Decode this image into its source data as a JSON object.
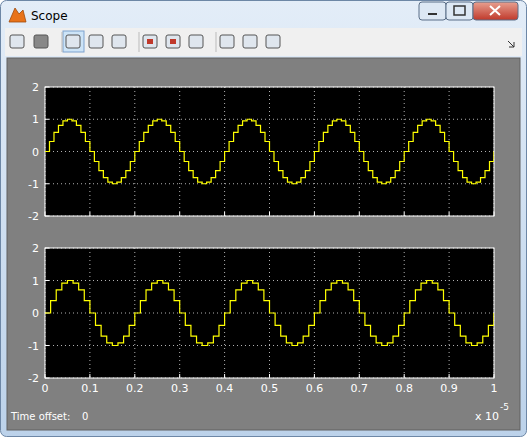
{
  "window": {
    "title": "Scope",
    "footer_label": "Time offset:",
    "time_offset": 0
  },
  "chart_data": [
    {
      "type": "line",
      "line_style": "step",
      "color": "#ffff00",
      "grid": true,
      "tick_labels": "y",
      "xlim": [
        0,
        1
      ],
      "ylim": [
        -2,
        2
      ],
      "xticks": [
        0,
        0.1,
        0.2,
        0.3,
        0.4,
        0.5,
        0.6,
        0.7,
        0.8,
        0.9,
        1
      ],
      "yticks": [
        -2,
        -1,
        0,
        1,
        2
      ],
      "x": [
        0,
        0.01,
        0.02,
        0.03,
        0.04,
        0.05,
        0.06,
        0.07,
        0.08,
        0.09,
        0.1,
        0.11,
        0.12,
        0.13,
        0.14,
        0.15,
        0.16,
        0.17,
        0.18,
        0.19,
        0.2,
        0.21,
        0.22,
        0.23,
        0.24,
        0.25,
        0.26,
        0.27,
        0.28,
        0.29,
        0.3,
        0.31,
        0.32,
        0.33,
        0.34,
        0.35,
        0.36,
        0.37,
        0.38,
        0.39,
        0.4,
        0.41,
        0.42,
        0.43,
        0.44,
        0.45,
        0.46,
        0.47,
        0.48,
        0.49,
        0.5,
        0.51,
        0.52,
        0.53,
        0.54,
        0.55,
        0.56,
        0.57,
        0.58,
        0.59,
        0.6,
        0.61,
        0.62,
        0.63,
        0.64,
        0.65,
        0.66,
        0.67,
        0.68,
        0.69,
        0.7,
        0.71,
        0.72,
        0.73,
        0.74,
        0.75,
        0.76,
        0.77,
        0.78,
        0.79,
        0.8,
        0.81,
        0.82,
        0.83,
        0.84,
        0.85,
        0.86,
        0.87,
        0.88,
        0.89,
        0.9,
        0.91,
        0.92,
        0.93,
        0.94,
        0.95,
        0.96,
        0.97,
        0.98,
        0.99,
        1
      ],
      "values": [
        0,
        0.31,
        0.59,
        0.81,
        0.95,
        1,
        0.95,
        0.81,
        0.59,
        0.31,
        0,
        -0.31,
        -0.59,
        -0.81,
        -0.95,
        -1,
        -0.95,
        -0.81,
        -0.59,
        -0.31,
        0,
        0.31,
        0.59,
        0.81,
        0.95,
        1,
        0.95,
        0.81,
        0.59,
        0.31,
        0,
        -0.31,
        -0.59,
        -0.81,
        -0.95,
        -1,
        -0.95,
        -0.81,
        -0.59,
        -0.31,
        0,
        0.31,
        0.59,
        0.81,
        0.95,
        1,
        0.95,
        0.81,
        0.59,
        0.31,
        0,
        -0.31,
        -0.59,
        -0.81,
        -0.95,
        -1,
        -0.95,
        -0.81,
        -0.59,
        -0.31,
        0,
        0.31,
        0.59,
        0.81,
        0.95,
        1,
        0.95,
        0.81,
        0.59,
        0.31,
        0,
        -0.31,
        -0.59,
        -0.81,
        -0.95,
        -1,
        -0.95,
        -0.81,
        -0.59,
        -0.31,
        0,
        0.31,
        0.59,
        0.81,
        0.95,
        1,
        0.95,
        0.81,
        0.59,
        0.31,
        0,
        -0.31,
        -0.59,
        -0.81,
        -0.95,
        -1,
        -0.95,
        -0.81,
        -0.59,
        -0.31,
        0
      ]
    },
    {
      "type": "line",
      "line_style": "step",
      "color": "#ffff00",
      "grid": true,
      "xlim": [
        0,
        1
      ],
      "ylim": [
        -2,
        2
      ],
      "xticks": [
        0,
        0.1,
        0.2,
        0.3,
        0.4,
        0.5,
        0.6,
        0.7,
        0.8,
        0.9,
        1
      ],
      "yticks": [
        -2,
        -1,
        0,
        1,
        2
      ],
      "annotations": [
        "x 10",
        "-5"
      ],
      "x": [
        0,
        0.0125,
        0.025,
        0.0375,
        0.05,
        0.0625,
        0.075,
        0.0875,
        0.1,
        0.1125,
        0.125,
        0.1375,
        0.15,
        0.1625,
        0.175,
        0.1875,
        0.2,
        0.2125,
        0.225,
        0.2375,
        0.25,
        0.2625,
        0.275,
        0.2875,
        0.3,
        0.3125,
        0.325,
        0.3375,
        0.35,
        0.3625,
        0.375,
        0.3875,
        0.4,
        0.4125,
        0.425,
        0.4375,
        0.45,
        0.4625,
        0.475,
        0.4875,
        0.5,
        0.5125,
        0.525,
        0.5375,
        0.55,
        0.5625,
        0.575,
        0.5875,
        0.6,
        0.6125,
        0.625,
        0.6375,
        0.65,
        0.6625,
        0.675,
        0.6875,
        0.7,
        0.7125,
        0.725,
        0.7375,
        0.75,
        0.7625,
        0.775,
        0.7875,
        0.8,
        0.8125,
        0.825,
        0.8375,
        0.85,
        0.8625,
        0.875,
        0.8875,
        0.9,
        0.9125,
        0.925,
        0.9375,
        0.95,
        0.9625,
        0.975,
        0.9875,
        1
      ],
      "values": [
        0,
        0.38,
        0.71,
        0.92,
        1,
        0.92,
        0.71,
        0.38,
        0,
        -0.38,
        -0.71,
        -0.92,
        -1,
        -0.92,
        -0.71,
        -0.38,
        0,
        0.38,
        0.71,
        0.92,
        1,
        0.92,
        0.71,
        0.38,
        0,
        -0.38,
        -0.71,
        -0.92,
        -1,
        -0.92,
        -0.71,
        -0.38,
        0,
        0.38,
        0.71,
        0.92,
        1,
        0.92,
        0.71,
        0.38,
        0,
        -0.38,
        -0.71,
        -0.92,
        -1,
        -0.92,
        -0.71,
        -0.38,
        0,
        0.38,
        0.71,
        0.92,
        1,
        0.92,
        0.71,
        0.38,
        0,
        -0.38,
        -0.71,
        -0.92,
        -1,
        -0.92,
        -0.71,
        -0.38,
        0,
        0.38,
        0.71,
        0.92,
        1,
        0.92,
        0.71,
        0.38,
        0,
        -0.38,
        -0.71,
        -0.92,
        -1,
        -0.92,
        -0.71,
        -0.38,
        0
      ]
    }
  ]
}
